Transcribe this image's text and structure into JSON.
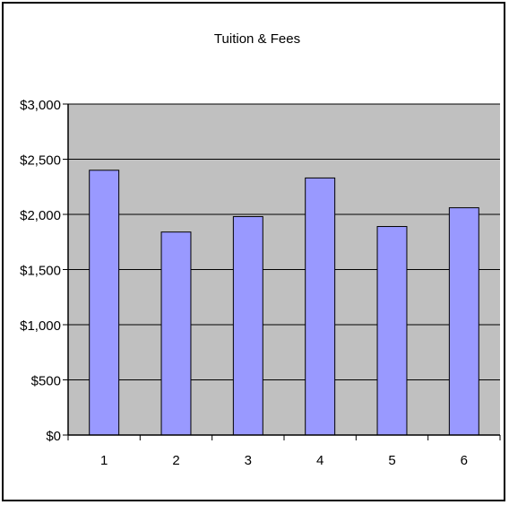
{
  "chart_data": {
    "type": "bar",
    "title": "Tuition & Fees",
    "categories": [
      "1",
      "2",
      "3",
      "4",
      "5",
      "6"
    ],
    "values": [
      2400,
      1840,
      1980,
      2330,
      1890,
      2060
    ],
    "ylim": [
      0,
      3000
    ],
    "yticks": [
      0,
      500,
      1000,
      1500,
      2000,
      2500,
      3000
    ],
    "ytick_labels": [
      "$0",
      "$500",
      "$1,000",
      "$1,500",
      "$2,000",
      "$2,500",
      "$3,000"
    ],
    "xlabel": "",
    "ylabel": "",
    "grid": true,
    "legend": "none",
    "colors": {
      "bar_fill": "#9999ff",
      "plot_background": "#c0c0c0",
      "gridline": "#000000"
    }
  }
}
